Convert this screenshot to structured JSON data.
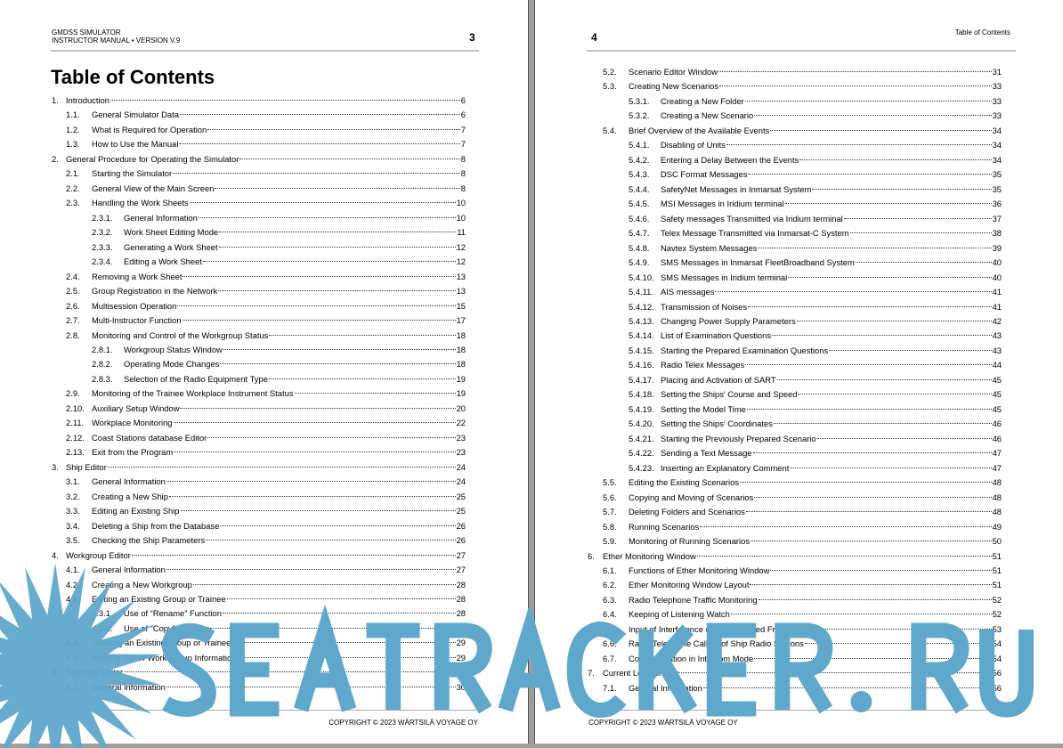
{
  "left_page": {
    "header_line1": "GMDSS SIMULATOR",
    "header_line2": "INSTRUCTOR MANUAL • VERSION V.9",
    "page_number": "3",
    "title": "Table of Contents",
    "footer": "COPYRIGHT © 2023 WÄRTSILÄ VOYAGE OY",
    "entries": [
      {
        "num": "1.",
        "title": "Introduction",
        "page": "6",
        "level": 1
      },
      {
        "num": "1.1.",
        "title": "General Simulator Data",
        "page": "6",
        "level": 2
      },
      {
        "num": "1.2.",
        "title": "What is Required for Operation",
        "page": "7",
        "level": 2
      },
      {
        "num": "1.3.",
        "title": "How to Use the Manual",
        "page": "7",
        "level": 2
      },
      {
        "num": "2.",
        "title": "General Procedure for Operating the Simulator",
        "page": "8",
        "level": 1
      },
      {
        "num": "2.1.",
        "title": "Starting the Simulator",
        "page": "8",
        "level": 2
      },
      {
        "num": "2.2.",
        "title": "General View of the Main Screen",
        "page": "8",
        "level": 2
      },
      {
        "num": "2.3.",
        "title": "Handling the Work Sheets",
        "page": "10",
        "level": 2
      },
      {
        "num": "2.3.1.",
        "title": "General Information",
        "page": "10",
        "level": 3
      },
      {
        "num": "2.3.2.",
        "title": "Work Sheet Editing Mode",
        "page": "11",
        "level": 3
      },
      {
        "num": "2.3.3.",
        "title": "Generating a Work Sheet",
        "page": "12",
        "level": 3
      },
      {
        "num": "2.3.4.",
        "title": "Editing a Work Sheet",
        "page": "12",
        "level": 3
      },
      {
        "num": "2.4.",
        "title": "Removing a Work Sheet",
        "page": "13",
        "level": 2
      },
      {
        "num": "2.5.",
        "title": "Group Registration in the Network",
        "page": "13",
        "level": 2
      },
      {
        "num": "2.6.",
        "title": "Multisession Operation",
        "page": "15",
        "level": 2
      },
      {
        "num": "2.7.",
        "title": "Multi-Instructor Function",
        "page": "17",
        "level": 2
      },
      {
        "num": "2.8.",
        "title": "Monitoring and Control of the Workgroup Status",
        "page": "18",
        "level": 2
      },
      {
        "num": "2.8.1.",
        "title": "Workgroup Status Window",
        "page": "18",
        "level": 3
      },
      {
        "num": "2.8.2.",
        "title": "Operating Mode Changes",
        "page": "18",
        "level": 3
      },
      {
        "num": "2.8.3.",
        "title": "Selection of the Radio Equipment Type",
        "page": "19",
        "level": 3
      },
      {
        "num": "2.9.",
        "title": "Monitoring of the Trainee Workplace Instrument Status",
        "page": "19",
        "level": 2
      },
      {
        "num": "2.10.",
        "title": "Auxiliary Setup Window",
        "page": "20",
        "level": 2
      },
      {
        "num": "2.11.",
        "title": "Workplace Monitoring",
        "page": "22",
        "level": 2
      },
      {
        "num": "2.12.",
        "title": "Coast Stations database Editor",
        "page": "23",
        "level": 2
      },
      {
        "num": "2.13.",
        "title": "Exit from the Program",
        "page": "23",
        "level": 2
      },
      {
        "num": "3.",
        "title": "Ship Editor",
        "page": "24",
        "level": 1
      },
      {
        "num": "3.1.",
        "title": "General Information",
        "page": "24",
        "level": 2
      },
      {
        "num": "3.2.",
        "title": "Creating a New Ship",
        "page": "25",
        "level": 2
      },
      {
        "num": "3.3.",
        "title": "Editing an Existing Ship",
        "page": "25",
        "level": 2
      },
      {
        "num": "3.4.",
        "title": "Deleting a Ship from the Database",
        "page": "26",
        "level": 2
      },
      {
        "num": "3.5.",
        "title": "Checking the Ship Parameters",
        "page": "26",
        "level": 2
      },
      {
        "num": "4.",
        "title": "Workgroup Editor",
        "page": "27",
        "level": 1
      },
      {
        "num": "4.1.",
        "title": "General Information",
        "page": "27",
        "level": 2
      },
      {
        "num": "4.2.",
        "title": "Creating a New Workgroup",
        "page": "28",
        "level": 2
      },
      {
        "num": "4.3.",
        "title": "Editing an Existing Group or Trainee",
        "page": "28",
        "level": 2
      },
      {
        "num": "4.3.1.",
        "title": "Use of “Rename” Function",
        "page": "28",
        "level": 3
      },
      {
        "num": "4.3.2.",
        "title": "Use of “Copy” Function",
        "page": "29",
        "level": 3
      },
      {
        "num": "4.4.",
        "title": "Deleting an Existing Group or Trainee",
        "page": "29",
        "level": 2
      },
      {
        "num": "4.5.",
        "title": "Printing Out of Work Group Information",
        "page": "29",
        "level": 2
      },
      {
        "num": "5.",
        "title": "Scenario Editor",
        "page": "30",
        "level": 1
      },
      {
        "num": "5.1.",
        "title": "General Information",
        "page": "30",
        "level": 2
      }
    ]
  },
  "right_page": {
    "page_number": "4",
    "running_header": "Table of Contents",
    "footer": "COPYRIGHT © 2023 WÄRTSILÄ VOYAGE OY",
    "entries": [
      {
        "num": "5.2.",
        "title": "Scenario Editor Window",
        "page": "31",
        "level": 2
      },
      {
        "num": "5.3.",
        "title": "Creating New Scenarios",
        "page": "33",
        "level": 2
      },
      {
        "num": "5.3.1.",
        "title": "Creating a New Folder",
        "page": "33",
        "level": 3
      },
      {
        "num": "5.3.2.",
        "title": "Creating a New Scenario",
        "page": "33",
        "level": 3
      },
      {
        "num": "5.4.",
        "title": "Brief Overview of the Available Events",
        "page": "34",
        "level": 2
      },
      {
        "num": "5.4.1.",
        "title": "Disabling of Units",
        "page": "34",
        "level": 3
      },
      {
        "num": "5.4.2.",
        "title": "Entering a Delay Between the Events",
        "page": "34",
        "level": 3
      },
      {
        "num": "5.4.3.",
        "title": "DSC Format Messages",
        "page": "35",
        "level": 3
      },
      {
        "num": "5.4.4.",
        "title": "SafetyNet Messages in Inmarsat System",
        "page": "35",
        "level": 3
      },
      {
        "num": "5.4.5.",
        "title": "MSI Messages in Iridium terminal",
        "page": "36",
        "level": 3
      },
      {
        "num": "5.4.6.",
        "title": "Safety messages Transmitted via Iridium terminal",
        "page": "37",
        "level": 3
      },
      {
        "num": "5.4.7.",
        "title": "Telex Message Transmitted via Inmarsat-C System",
        "page": "38",
        "level": 3
      },
      {
        "num": "5.4.8.",
        "title": "Navtex System Messages",
        "page": "39",
        "level": 3
      },
      {
        "num": "5.4.9.",
        "title": "SMS Messages in Inmarsat FleetBroadband System",
        "page": "40",
        "level": 3
      },
      {
        "num": "5.4.10.",
        "title": "SMS Messages in Iridium terminal",
        "page": "40",
        "level": 3
      },
      {
        "num": "5.4.11.",
        "title": "AIS messages",
        "page": "41",
        "level": 3
      },
      {
        "num": "5.4.12.",
        "title": "Transmission of Noises",
        "page": "41",
        "level": 3
      },
      {
        "num": "5.4.13.",
        "title": "Changing Power Supply Parameters",
        "page": "42",
        "level": 3
      },
      {
        "num": "5.4.14.",
        "title": "List of Examination Questions",
        "page": "43",
        "level": 3
      },
      {
        "num": "5.4.15.",
        "title": "Starting the Prepared Examination Questions",
        "page": "43",
        "level": 3
      },
      {
        "num": "5.4.16.",
        "title": "Radio Telex Messages",
        "page": "44",
        "level": 3
      },
      {
        "num": "5.4.17.",
        "title": "Placing and Activation of SART",
        "page": "45",
        "level": 3
      },
      {
        "num": "5.4.18.",
        "title": "Setting the Ships' Course and Speed",
        "page": "45",
        "level": 3
      },
      {
        "num": "5.4.19.",
        "title": "Setting the Model Time",
        "page": "45",
        "level": 3
      },
      {
        "num": "5.4.20.",
        "title": "Setting the Ships' Coordinates",
        "page": "46",
        "level": 3
      },
      {
        "num": "5.4.21.",
        "title": "Starting the Previously Prepared Scenario",
        "page": "46",
        "level": 3
      },
      {
        "num": "5.4.22.",
        "title": "Sending a Text Message",
        "page": "47",
        "level": 3
      },
      {
        "num": "5.4.23.",
        "title": "Inserting an Explanatory Comment",
        "page": "47",
        "level": 3
      },
      {
        "num": "5.5.",
        "title": "Editing the Existing Scenarios",
        "page": "48",
        "level": 2
      },
      {
        "num": "5.6.",
        "title": "Copying and Moving of Scenarios",
        "page": "48",
        "level": 2
      },
      {
        "num": "5.7.",
        "title": "Deleting Folders and Scenarios",
        "page": "48",
        "level": 2
      },
      {
        "num": "5.8.",
        "title": "Running Scenarios",
        "page": "49",
        "level": 2
      },
      {
        "num": "5.9.",
        "title": "Monitoring of Running Scenarios",
        "page": "50",
        "level": 2
      },
      {
        "num": "6.",
        "title": "Ether Monitoring Window",
        "page": "51",
        "level": 1
      },
      {
        "num": "6.1.",
        "title": "Functions of Ether Monitoring Window",
        "page": "51",
        "level": 2
      },
      {
        "num": "6.2.",
        "title": "Ether Monitoring Window Layout",
        "page": "51",
        "level": 2
      },
      {
        "num": "6.3.",
        "title": "Radio Telephone Traffic Monitoring",
        "page": "52",
        "level": 2
      },
      {
        "num": "6.4.",
        "title": "Keeping of Listening Watch",
        "page": "52",
        "level": 2
      },
      {
        "num": "6.5.",
        "title": "Input of Interference on the Required Frequency",
        "page": "53",
        "level": 2
      },
      {
        "num": "6.6.",
        "title": "Radio Telephone Calling of Ship Radio Stations",
        "page": "54",
        "level": 2
      },
      {
        "num": "6.7.",
        "title": "Communication in Intercom Mode",
        "page": "54",
        "level": 2
      },
      {
        "num": "7.",
        "title": "Current Log Window",
        "page": "56",
        "level": 1
      },
      {
        "num": "7.1.",
        "title": "General Information",
        "page": "56",
        "level": 2
      }
    ]
  },
  "watermark": {
    "text": "SEATRACKER.RU",
    "color": "#5fa8cc"
  }
}
